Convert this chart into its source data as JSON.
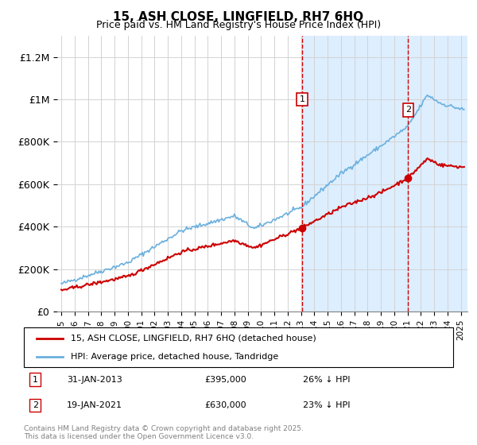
{
  "title": "15, ASH CLOSE, LINGFIELD, RH7 6HQ",
  "subtitle": "Price paid vs. HM Land Registry's House Price Index (HPI)",
  "ylabel_ticks": [
    "£0",
    "£200K",
    "£400K",
    "£600K",
    "£800K",
    "£1M",
    "£1.2M"
  ],
  "ytick_values": [
    0,
    200000,
    400000,
    600000,
    800000,
    1000000,
    1200000
  ],
  "ylim": [
    0,
    1300000
  ],
  "xlim_start": 1995.0,
  "xlim_end": 2025.5,
  "hpi_color": "#6ab0de",
  "price_color": "#cc0000",
  "background_color": "#ddeeff",
  "sale1_x": 2013.08,
  "sale1_y": 395000,
  "sale2_x": 2021.05,
  "sale2_y": 630000,
  "dashed_line_color": "#cc0000",
  "legend_label_red": "15, ASH CLOSE, LINGFIELD, RH7 6HQ (detached house)",
  "legend_label_blue": "HPI: Average price, detached house, Tandridge",
  "annotation1_label": "1",
  "annotation2_label": "2",
  "table_row1": "1    31-JAN-2013    £395,000    26% ↓ HPI",
  "table_row2": "2    19-JAN-2021    £630,000    23% ↓ HPI",
  "footer": "Contains HM Land Registry data © Crown copyright and database right 2025.\nThis data is licensed under the Open Government Licence v3.0.",
  "xtick_labels": [
    "1995",
    "1996",
    "1997",
    "1998",
    "1999",
    "2000",
    "2001",
    "2002",
    "2003",
    "2004",
    "2005",
    "2006",
    "2007",
    "2008",
    "2009",
    "2010",
    "2011",
    "2012",
    "2013",
    "2014",
    "2015",
    "2016",
    "2017",
    "2018",
    "2019",
    "2020",
    "2021",
    "2022",
    "2023",
    "2024",
    "2025"
  ]
}
